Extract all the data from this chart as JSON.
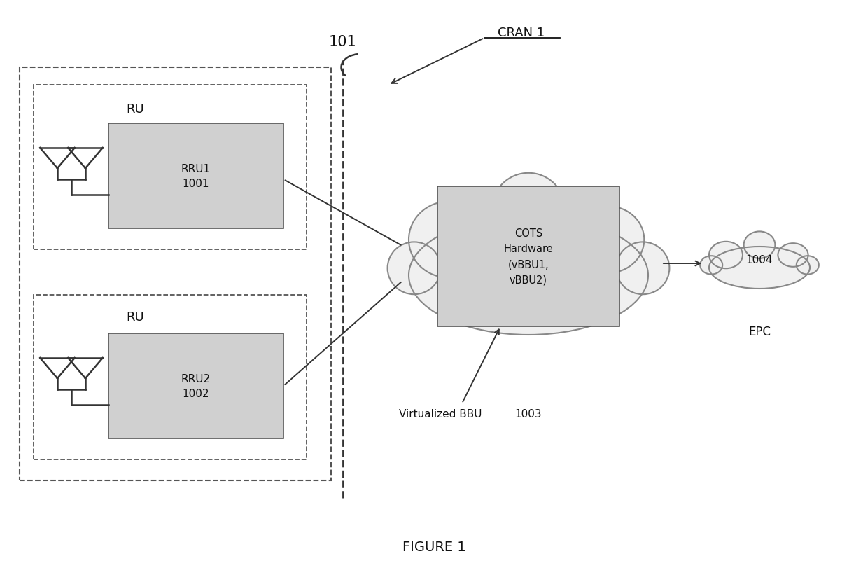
{
  "figure_width": 12.4,
  "figure_height": 8.12,
  "bg_color": "#ffffff",
  "title": "FIGURE 1",
  "cran_label": "CRAN 1",
  "fronthaul_label": "101",
  "vbbu_label": "Virtualized BBU",
  "vbbu_num": "1003",
  "epc_label": "EPC",
  "epc_num": "1004",
  "ru1_label": "RU",
  "rru1_label": "RRU1\n1001",
  "ru2_label": "RU",
  "rru2_label": "RRU2\n1002",
  "cots_label": "COTS\nHardware\n(vBBU1,\nvBBU2)",
  "box_fill": "#d0d0d0",
  "box_edge": "#555555",
  "cloud_fill": "#f0f0f0",
  "cloud_edge": "#888888",
  "dashed_box_color": "#555555",
  "line_color": "#333333",
  "text_color": "#111111"
}
